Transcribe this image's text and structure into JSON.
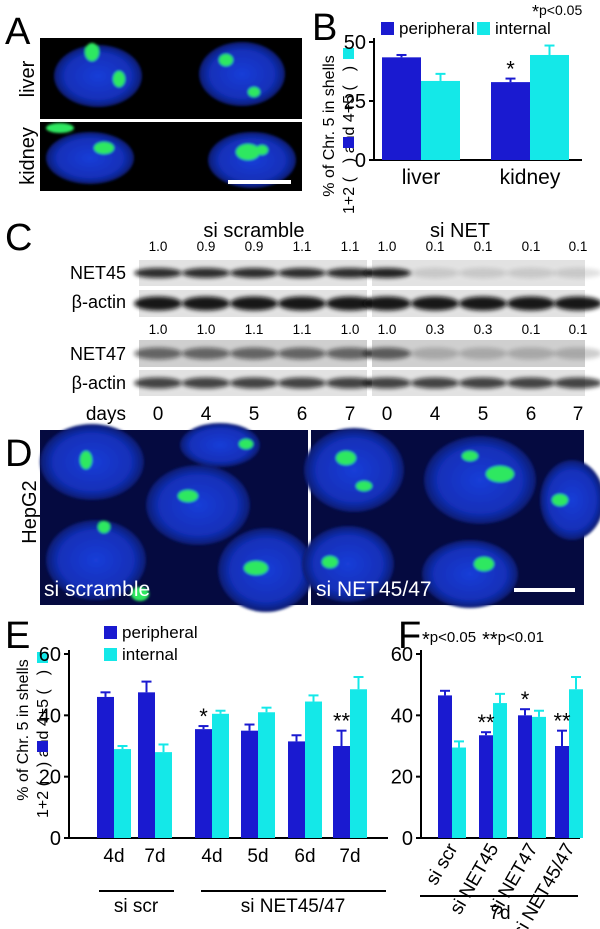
{
  "panels": {
    "A": {
      "letter": "A",
      "rows": [
        "liver",
        "kidney"
      ]
    },
    "B": {
      "letter": "B",
      "sig_note": "p<0.05",
      "ylabel_line1": "% of Chr. 5 in shells",
      "ylabel_line2_a": "1+2 (",
      "ylabel_line2_b": ") and 4+5 (",
      "ylabel_line2_c": ")"
    },
    "C": {
      "letter": "C",
      "groups": [
        "si scramble",
        "si NET"
      ],
      "rows": [
        "NET45",
        "β-actin",
        "NET47",
        "β-actin"
      ],
      "ratios": {
        "net45_scramble": [
          "1.0",
          "0.9",
          "0.9",
          "1.1",
          "1.1"
        ],
        "net45_net": [
          "1.0",
          "0.1",
          "0.1",
          "0.1",
          "0.1"
        ],
        "net47_scramble": [
          "1.0",
          "1.0",
          "1.1",
          "1.1",
          "1.0"
        ],
        "net47_net": [
          "1.0",
          "0.3",
          "0.3",
          "0.1",
          "0.1"
        ]
      },
      "days_label": "days",
      "days": [
        "0",
        "4",
        "5",
        "6",
        "7"
      ]
    },
    "D": {
      "letter": "D",
      "side_label": "HepG2",
      "left_label": "si scramble",
      "right_label": "si NET45/47"
    },
    "E": {
      "letter": "E",
      "sig_note_1": "p<0.05",
      "sig_note_2": "p<0.01",
      "ylabel_line1": "% of Chr. 5 in shells",
      "ylabel_line2_a": "1+2 (",
      "ylabel_line2_b": ") and 4+5 (",
      "ylabel_line2_c": ")",
      "group_labels": [
        "si scr",
        "si NET45/47"
      ]
    },
    "F": {
      "letter": "F",
      "bracket_label": "7d"
    }
  },
  "colors": {
    "peripheral": "#1a1ad0",
    "internal": "#14e8e8"
  },
  "chart_data": [
    {
      "panel": "B",
      "type": "bar",
      "categories": [
        "liver",
        "kidney"
      ],
      "series": [
        {
          "name": "peripheral",
          "values": [
            43.5,
            33
          ],
          "errors": [
            1,
            1.5
          ]
        },
        {
          "name": "internal",
          "values": [
            33.5,
            44.5
          ],
          "errors": [
            3,
            4
          ]
        }
      ],
      "ylim": [
        0,
        50
      ],
      "yticks": [
        "0",
        "25",
        "50"
      ],
      "stars": [
        {
          "category": 1,
          "series": 0,
          "text": "*"
        }
      ],
      "legend": "top"
    },
    {
      "panel": "E",
      "type": "bar",
      "categories": [
        "4d",
        "7d",
        "4d",
        "5d",
        "6d",
        "7d"
      ],
      "series": [
        {
          "name": "peripheral",
          "values": [
            46,
            47.5,
            35.5,
            35,
            31.5,
            30
          ],
          "errors": [
            1.5,
            3.5,
            1,
            2,
            2,
            5
          ]
        },
        {
          "name": "internal",
          "values": [
            29,
            28,
            40.5,
            41,
            44.5,
            48.5
          ],
          "errors": [
            1,
            2.5,
            1,
            1.5,
            2,
            4
          ]
        }
      ],
      "ylim": [
        0,
        60
      ],
      "yticks": [
        "0",
        "20",
        "40",
        "60"
      ],
      "stars": [
        {
          "category": 2,
          "series": 0,
          "text": "*"
        },
        {
          "category": 5,
          "series": 0,
          "text": "**"
        }
      ],
      "legend": "top-left"
    },
    {
      "panel": "F",
      "type": "bar",
      "categories": [
        "si scr",
        "si NET45",
        "si NET47",
        "si NET45/47"
      ],
      "series": [
        {
          "name": "peripheral",
          "values": [
            46.5,
            33.5,
            40,
            30
          ],
          "errors": [
            1.5,
            1,
            2,
            5
          ]
        },
        {
          "name": "internal",
          "values": [
            29.5,
            44,
            39.5,
            48.5
          ],
          "errors": [
            2,
            3,
            2,
            4
          ]
        }
      ],
      "ylim": [
        0,
        60
      ],
      "yticks": [
        "0",
        "20",
        "40",
        "60"
      ],
      "stars": [
        {
          "category": 1,
          "series": 0,
          "text": "**"
        },
        {
          "category": 2,
          "series": 0,
          "text": "*"
        },
        {
          "category": 3,
          "series": 0,
          "text": "**"
        }
      ]
    }
  ]
}
